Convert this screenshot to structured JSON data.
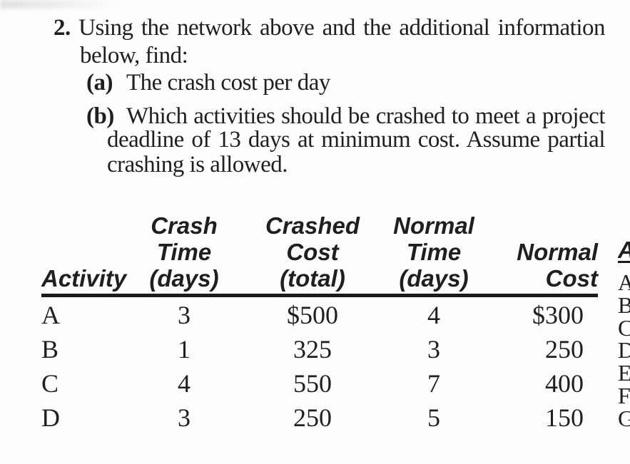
{
  "problem": {
    "number": "2.",
    "intro_line1": "Using the network above and the additional information",
    "intro_line2": "below, find:",
    "part_a": {
      "marker": "(a)",
      "text": "The crash cost per day"
    },
    "part_b": {
      "marker": "(b)",
      "line1": "Which activities should be crashed to meet a project",
      "line2": "deadline of 13 days at minimum cost. Assume partial",
      "line3": "crashing is allowed."
    }
  },
  "crash_table": {
    "headers": {
      "activity": "Activity",
      "crash_time_1": "Crash",
      "crash_time_2": "Time",
      "crash_time_3": "(days)",
      "crashed_cost_1": "Crashed",
      "crashed_cost_2": "Cost",
      "crashed_cost_3": "(total)",
      "normal_time_1": "Normal",
      "normal_time_2": "Time",
      "normal_time_3": "(days)",
      "normal_cost_1": "Normal",
      "normal_cost_2": "Cost"
    },
    "rows": [
      {
        "activity": "A",
        "crash_time": "3",
        "crashed_cost": "$500",
        "normal_time": "4",
        "normal_cost": "$300"
      },
      {
        "activity": "B",
        "crash_time": "1",
        "crashed_cost": "325",
        "normal_time": "3",
        "normal_cost": "250"
      },
      {
        "activity": "C",
        "crash_time": "4",
        "crashed_cost": "550",
        "normal_time": "7",
        "normal_cost": "400"
      },
      {
        "activity": "D",
        "crash_time": "3",
        "crashed_cost": "250",
        "normal_time": "5",
        "normal_cost": "150"
      }
    ]
  },
  "edge_fragment": {
    "header": "A",
    "rows": [
      "A",
      "B",
      "C",
      "D",
      "E",
      "F",
      "G"
    ]
  },
  "colors": {
    "text": "#1f1f1f",
    "rule": "#1c1c1c",
    "background": "#fdfdfd"
  }
}
